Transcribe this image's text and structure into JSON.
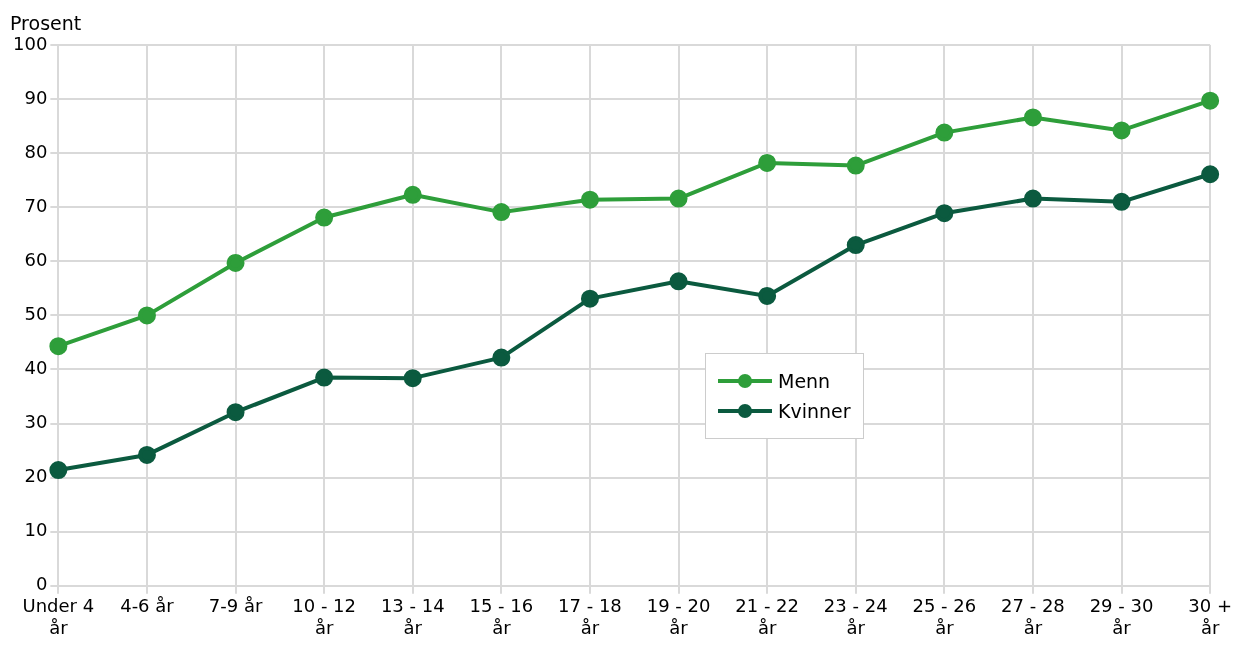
{
  "chart_data": {
    "type": "line",
    "ylabel": "Prosent",
    "categories": [
      "Under 4\når",
      "4-6 år",
      "7-9 år",
      "10 - 12\når",
      "13 - 14\når",
      "15 - 16\når",
      "17 - 18\når",
      "19 - 20\når",
      "21 - 22\når",
      "23 - 24\når",
      "25 - 26\når",
      "27 - 28\når",
      "29 - 30\når",
      "30 +\når"
    ],
    "series": [
      {
        "name": "Menn",
        "color": "#2e9e3a",
        "values": [
          44.3,
          50.0,
          59.7,
          68.1,
          72.3,
          69.1,
          71.4,
          71.6,
          78.2,
          77.7,
          83.8,
          86.6,
          84.2,
          89.7
        ]
      },
      {
        "name": "Kvinner",
        "color": "#0b5a3f",
        "values": [
          21.4,
          24.2,
          32.1,
          38.5,
          38.4,
          42.2,
          53.1,
          56.3,
          53.6,
          63.0,
          68.9,
          71.6,
          71.0,
          76.1
        ]
      }
    ],
    "ylim": [
      0,
      100
    ],
    "yticks": [
      0,
      10,
      20,
      30,
      40,
      50,
      60,
      70,
      80,
      90,
      100
    ],
    "grid": true,
    "legend": "center",
    "marker": "circle",
    "line_style": "solid"
  }
}
